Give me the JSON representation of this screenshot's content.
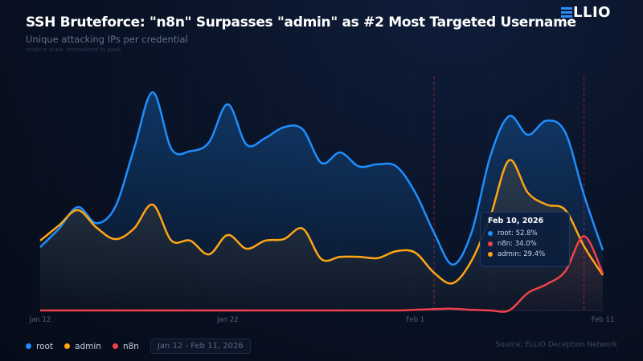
{
  "header": {
    "title": "SSH Bruteforce: \"n8n\" Surpasses \"admin\" as #2 Most Targeted Username",
    "subtitle": "Unique attacking IPs per credential",
    "note": "relative scale, normalized to peak",
    "logo": "ELLIO"
  },
  "legend": {
    "items": [
      {
        "label": "root",
        "color": "#1e8fff"
      },
      {
        "label": "admin",
        "color": "#ffa514"
      },
      {
        "label": "n8n",
        "color": "#f0414a"
      }
    ],
    "date_range": "Jan 12 - Feb 11, 2026"
  },
  "source": "Source: ELLIO Deception Network",
  "tooltip": {
    "date": "Feb 10, 2026",
    "rows": [
      {
        "label": "root:  52.8%",
        "color": "#1e8fff"
      },
      {
        "label": "n8n:  34.0%",
        "color": "#f0414a"
      },
      {
        "label": "admin:  29.4%",
        "color": "#ffa514"
      }
    ]
  },
  "chart_data": {
    "type": "line",
    "title": "SSH Bruteforce: \"n8n\" Surpasses \"admin\" as #2 Most Targeted Username",
    "subtitle": "Unique attacking IPs per credential",
    "x_start": "2026-01-12",
    "x_end": "2026-02-11",
    "x_ticks": [
      "Jan 12",
      "Jan 22",
      "Feb 1",
      "Feb 11"
    ],
    "ylim": [
      0,
      100
    ],
    "grid": true,
    "markers": [
      "2026-02-02",
      "2026-02-10"
    ],
    "series": [
      {
        "name": "root",
        "color": "#1e8fff",
        "values": [
          29,
          37.5,
          47.4,
          40,
          47.4,
          74,
          100,
          74,
          73,
          77,
          94.5,
          76,
          79,
          84,
          83,
          67.6,
          72.4,
          66,
          67,
          66,
          54,
          35.7,
          21,
          35.7,
          70.6,
          89,
          80.5,
          87,
          81.6,
          52.8,
          27.6
        ]
      },
      {
        "name": "admin",
        "color": "#ffa514",
        "values": [
          32,
          39,
          46,
          38,
          32.7,
          37.5,
          48.5,
          32,
          32,
          25.7,
          34.6,
          28.3,
          32,
          32.7,
          37.5,
          23.5,
          24.6,
          24.6,
          24,
          27.2,
          26.5,
          17.3,
          12.5,
          22.8,
          43,
          68.8,
          54,
          48.5,
          46,
          29.4,
          16.2
        ]
      },
      {
        "name": "n8n",
        "color": "#f0414a",
        "values": [
          0,
          0,
          0,
          0,
          0,
          0,
          0,
          0,
          0,
          0,
          0,
          0,
          0,
          0,
          0,
          0,
          0,
          0,
          0,
          0,
          0.3,
          0.6,
          0.8,
          0.3,
          0,
          0,
          8,
          12,
          18,
          34,
          17
        ]
      }
    ]
  }
}
